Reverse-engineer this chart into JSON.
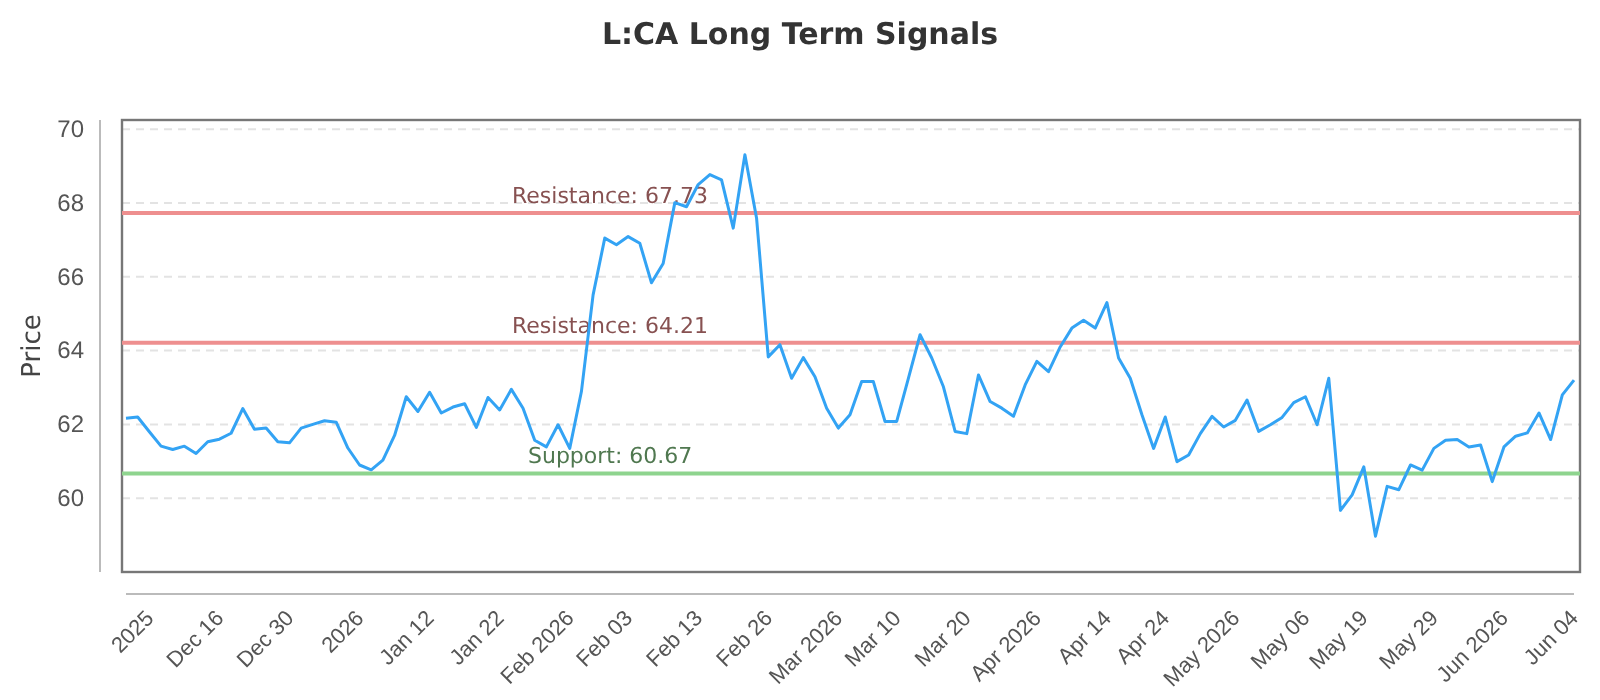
{
  "chart_data": {
    "type": "line",
    "title": "L:CA Long Term Signals",
    "ylabel": "Price",
    "categories": [
      null,
      null,
      "2025",
      null,
      null,
      null,
      null,
      null,
      "Dec 16",
      null,
      null,
      null,
      null,
      null,
      "Dec 30",
      null,
      null,
      null,
      null,
      null,
      "2026",
      null,
      null,
      null,
      null,
      null,
      "Jan 12",
      null,
      null,
      null,
      null,
      null,
      "Jan 22",
      null,
      null,
      null,
      null,
      null,
      "Feb 2026",
      null,
      null,
      null,
      null,
      "Feb 03",
      null,
      null,
      null,
      null,
      null,
      "Feb 13",
      null,
      null,
      null,
      null,
      null,
      "Feb 26",
      null,
      null,
      null,
      null,
      null,
      "Mar 2026",
      null,
      null,
      null,
      null,
      "Mar 10",
      null,
      null,
      null,
      null,
      null,
      "Mar 20",
      null,
      null,
      null,
      null,
      null,
      "Apr 2026",
      null,
      null,
      null,
      null,
      null,
      "Apr 14",
      null,
      null,
      null,
      null,
      "Apr 24",
      null,
      null,
      null,
      null,
      null,
      "May 2026",
      null,
      null,
      null,
      null,
      null,
      "May 06",
      null,
      null,
      null,
      null,
      "May 19",
      null,
      null,
      null,
      null,
      null,
      "May 29",
      null,
      null,
      null,
      null,
      null,
      "Jun 2026",
      null,
      null,
      null,
      null,
      null,
      "Jun 04"
    ],
    "series": [
      {
        "color": "#33a3f4",
        "values": [
          62.17,
          62.2,
          61.8,
          61.41,
          61.32,
          61.41,
          61.21,
          61.53,
          61.6,
          61.76,
          62.43,
          61.87,
          61.9,
          61.53,
          61.5,
          61.9,
          62.0,
          62.1,
          62.06,
          61.36,
          60.9,
          60.77,
          61.03,
          61.7,
          62.75,
          62.35,
          62.87,
          62.31,
          62.47,
          62.56,
          61.92,
          62.73,
          62.39,
          62.95,
          62.44,
          61.57,
          61.39,
          61.99,
          61.35,
          62.89,
          65.51,
          67.05,
          66.87,
          67.09,
          66.91,
          65.84,
          66.36,
          68.01,
          67.9,
          68.5,
          68.77,
          68.63,
          67.32,
          69.31,
          67.59,
          63.83,
          64.16,
          63.25,
          63.81,
          63.29,
          62.44,
          61.9,
          62.26,
          63.16,
          63.16,
          62.08,
          62.08,
          63.25,
          64.43,
          63.8,
          63.02,
          61.81,
          61.75,
          63.34,
          62.62,
          62.44,
          62.22,
          63.07,
          63.71,
          63.43,
          64.1,
          64.61,
          64.82,
          64.61,
          65.3,
          63.8,
          63.25,
          62.26,
          61.35,
          62.2,
          60.99,
          61.17,
          61.75,
          62.22,
          61.93,
          62.11,
          62.66,
          61.81,
          61.99,
          62.19,
          62.59,
          62.75,
          61.99,
          63.25,
          59.67,
          60.09,
          60.85,
          58.97,
          60.32,
          60.23,
          60.9,
          60.76,
          61.35,
          61.57,
          61.59,
          61.39,
          61.44,
          60.45,
          61.39,
          61.68,
          61.77,
          62.31,
          61.59,
          62.8,
          63.2
        ]
      }
    ],
    "ylim": [
      58,
      70.25
    ],
    "yticks": [
      60,
      62,
      64,
      66,
      68,
      70
    ],
    "grid": "y",
    "marker": "none",
    "line_style": "solid",
    "ref_lines": [
      {
        "axis": "y",
        "value": 67.73,
        "label": "Resistance: 67.73",
        "color": "#ee8f8f"
      },
      {
        "axis": "y",
        "value": 64.21,
        "label": "Resistance: 64.21",
        "color": "#ee8f8f"
      },
      {
        "axis": "y",
        "value": 60.67,
        "label": "Support: 60.67",
        "color": "#8ed48e"
      }
    ]
  }
}
